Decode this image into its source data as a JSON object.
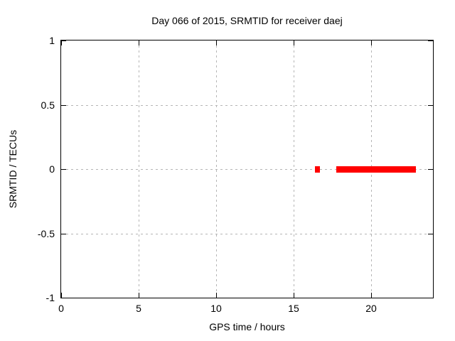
{
  "page": {
    "background_color": "#ffffff",
    "text_color": "#000000"
  },
  "chart_data": {
    "type": "scatter",
    "title": "Day 066 of 2015, SRMTID for receiver daej",
    "xlabel": "GPS time / hours",
    "ylabel": "SRMTID / TECUs",
    "xlim": [
      0,
      24
    ],
    "ylim": [
      -1,
      1
    ],
    "xticks": [
      {
        "value": 0,
        "label": "0"
      },
      {
        "value": 5,
        "label": "5"
      },
      {
        "value": 10,
        "label": "10"
      },
      {
        "value": 15,
        "label": "15"
      },
      {
        "value": 20,
        "label": "20"
      }
    ],
    "yticks": [
      {
        "value": -1,
        "label": "-1"
      },
      {
        "value": -0.5,
        "label": "-0.5"
      },
      {
        "value": 0,
        "label": "0"
      },
      {
        "value": 0.5,
        "label": "0.5"
      },
      {
        "value": 1,
        "label": "1"
      }
    ],
    "grid": true,
    "grid_style": "dashed",
    "legend": "none",
    "tics_mirrored": true,
    "series": [
      {
        "name": "SRMTID",
        "color": "#ff0000",
        "style": "filled-squares",
        "segments": [
          {
            "x_start": 16.4,
            "x_end": 16.72,
            "y": 0
          },
          {
            "x_start": 17.78,
            "x_end": 22.9,
            "y": 0
          }
        ]
      }
    ],
    "colors": {
      "border": "#000000",
      "grid": "#b5b5b5",
      "text": "#000000",
      "series": "#ff0000"
    }
  }
}
